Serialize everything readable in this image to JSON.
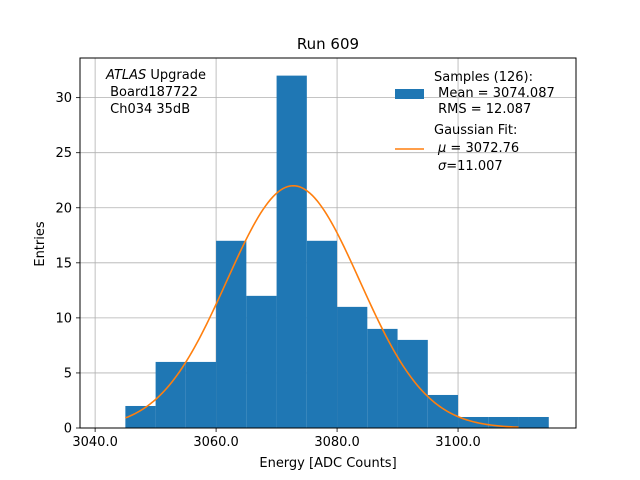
{
  "chart_data": {
    "type": "bar",
    "title": "Run 609",
    "xlabel": "Energy [ADC Counts]",
    "ylabel": "Entries",
    "xlim": [
      3037.5,
      3119.5
    ],
    "ylim": [
      0,
      33.6
    ],
    "x_ticks": [
      3040.0,
      3060.0,
      3080.0,
      3100.0
    ],
    "x_tick_labels": [
      "3040.0",
      "3060.0",
      "3080.0",
      "3100.0"
    ],
    "y_ticks": [
      0,
      5,
      10,
      15,
      20,
      25,
      30
    ],
    "y_tick_labels": [
      "0",
      "5",
      "10",
      "15",
      "20",
      "25",
      "30"
    ],
    "grid": true,
    "bar_color": "#1f77b4",
    "fit_color": "#ff7f0e",
    "histogram": {
      "name": "Samples (126):",
      "bins": [
        {
          "x0": 3045,
          "x1": 3050,
          "count": 2
        },
        {
          "x0": 3050,
          "x1": 3055,
          "count": 6
        },
        {
          "x0": 3055,
          "x1": 3060,
          "count": 6
        },
        {
          "x0": 3060,
          "x1": 3065,
          "count": 17
        },
        {
          "x0": 3065,
          "x1": 3070,
          "count": 12
        },
        {
          "x0": 3070,
          "x1": 3075,
          "count": 32
        },
        {
          "x0": 3075,
          "x1": 3080,
          "count": 17
        },
        {
          "x0": 3080,
          "x1": 3085,
          "count": 11
        },
        {
          "x0": 3085,
          "x1": 3090,
          "count": 9
        },
        {
          "x0": 3090,
          "x1": 3095,
          "count": 8
        },
        {
          "x0": 3095,
          "x1": 3100,
          "count": 3
        },
        {
          "x0": 3100,
          "x1": 3105,
          "count": 1
        },
        {
          "x0": 3105,
          "x1": 3110,
          "count": 1
        },
        {
          "x0": 3110,
          "x1": 3115,
          "count": 1
        }
      ]
    },
    "gaussian_fit": {
      "name": "Gaussian Fit:",
      "mu": 3072.76,
      "sigma": 11.007,
      "amplitude": 22.0,
      "x_range": [
        3045,
        3110
      ]
    },
    "annotation": {
      "line1_italic": "ATLAS",
      "line1_rest": " Upgrade",
      "line2": " Board187722",
      "line3": " Ch034 35dB"
    },
    "legend": {
      "position": "top-right",
      "samples_label": "Samples (126):",
      "samples_mean": " Mean = 3074.087",
      "samples_rms": " RMS = 12.087",
      "fit_label": "Gaussian Fit:",
      "fit_mu_symbol": "μ",
      "fit_mu_rest": " = 3072.76",
      "fit_sigma_symbol": "σ",
      "fit_sigma_rest": "=11.007"
    }
  }
}
